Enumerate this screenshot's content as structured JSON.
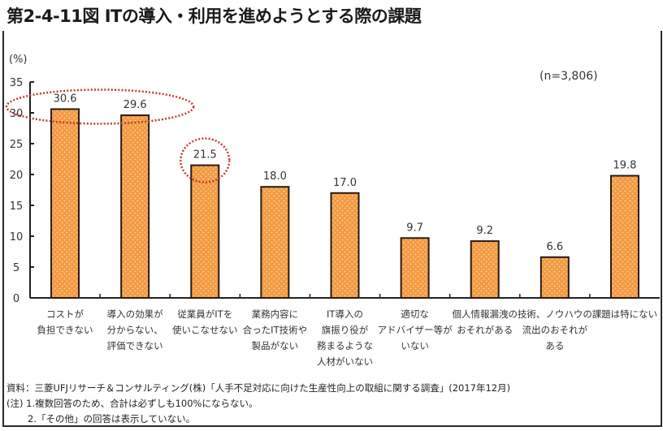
{
  "header": {
    "title": "第2-4-11図 ITの導入・利用を進めようとする際の課題"
  },
  "chart_data": {
    "type": "bar",
    "title": "第2-4-11図 ITの導入・利用を進めようとする際の課題",
    "ylabel": "(%)",
    "xlabel": "",
    "sample_size": "(n=3,806)",
    "ylim": [
      0,
      35
    ],
    "yticks": [
      0,
      5,
      10,
      15,
      20,
      25,
      30,
      35
    ],
    "grid": false,
    "categories": [
      [
        "コストが",
        "負担できない"
      ],
      [
        "導入の効果が",
        "分からない、",
        "評価できない"
      ],
      [
        "従業員がITを",
        "使いこなせない"
      ],
      [
        "業務内容に",
        "合ったIT技術や",
        "製品がない"
      ],
      [
        "IT導入の",
        "旗振り役が",
        "務まるような",
        "人材がいない"
      ],
      [
        "適切な",
        "アドバイザー等が",
        "いない"
      ],
      [
        "個人情報漏洩の",
        "おそれがある"
      ],
      [
        "技術、ノウハウの",
        "流出のおそれが",
        "ある"
      ],
      [
        "課題は特にない"
      ]
    ],
    "values": [
      30.6,
      29.6,
      21.5,
      18.0,
      17.0,
      9.7,
      9.2,
      6.6,
      19.8
    ],
    "value_labels": [
      "30.6",
      "29.6",
      "21.5",
      "18.0",
      "17.0",
      "9.7",
      "9.2",
      "6.6",
      "19.8"
    ],
    "highlighted_groups": [
      [
        0,
        1
      ],
      [
        2
      ]
    ],
    "colors": {
      "bar_fill": "#f39a44",
      "bar_dots": "#fbd59a",
      "bar_border": "#2b1a10",
      "highlight_ring": "#c0392b",
      "axis": "#222222"
    }
  },
  "notes": {
    "source": "資料：三菱UFJリサーチ＆コンサルティング(株)「人手不足対応に向けた生産性向上の取組に関する調査」(2017年12月)",
    "note1": "(注) 1.複数回答のため、合計は必ずしも100%にならない。",
    "note2": "2.「その他」の回答は表示していない。"
  }
}
